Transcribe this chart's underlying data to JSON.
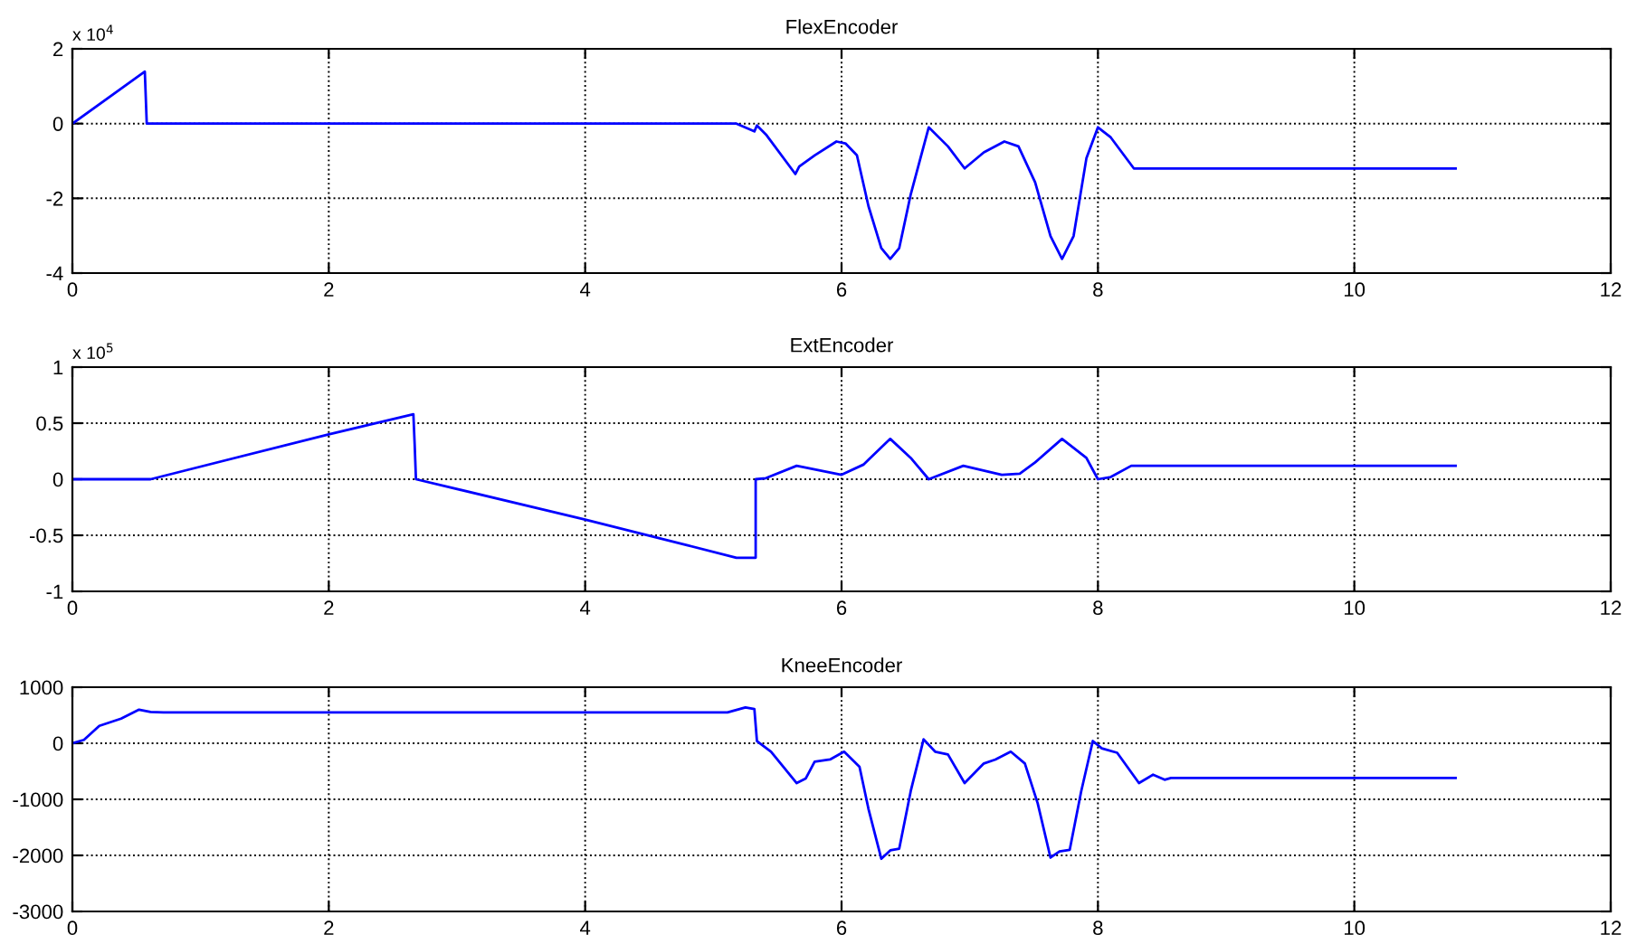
{
  "chart_data": [
    {
      "type": "line",
      "title": "FlexEncoder",
      "annotations": [
        "x 10$^{4}$"
      ],
      "xlim": [
        0,
        12
      ],
      "xticks": [
        0,
        2,
        4,
        6,
        8,
        10,
        12
      ],
      "ylim": [
        -4,
        2
      ],
      "yticks": [
        -4,
        -2,
        0,
        2
      ],
      "grid": true,
      "legend": false,
      "series": [
        {
          "color": "#0000ff",
          "x": [
            0,
            0.565,
            0.58,
            4.8,
            5.18,
            5.32,
            5.34,
            5.41,
            5.64,
            5.67,
            5.79,
            5.96,
            6.03,
            6.12,
            6.21,
            6.31,
            6.38,
            6.45,
            6.54,
            6.68,
            6.83,
            6.96,
            7.11,
            7.27,
            7.38,
            7.51,
            7.63,
            7.72,
            7.81,
            7.91,
            8.0,
            8.1,
            8.28,
            10.79
          ],
          "values": [
            0,
            1.39,
            0,
            0,
            0,
            -0.21,
            -0.05,
            -0.29,
            -1.35,
            -1.15,
            -0.85,
            -0.48,
            -0.53,
            -0.85,
            -2.21,
            -3.33,
            -3.62,
            -3.33,
            -1.89,
            -0.1,
            -0.61,
            -1.2,
            -0.77,
            -0.48,
            -0.61,
            -1.57,
            -3.01,
            -3.62,
            -3.01,
            -0.93,
            -0.1,
            -0.37,
            -1.2,
            -1.2
          ]
        }
      ]
    },
    {
      "type": "line",
      "title": "ExtEncoder",
      "annotations": [
        "x 10$^{5}$"
      ],
      "xlim": [
        0,
        12
      ],
      "xticks": [
        0,
        2,
        4,
        6,
        8,
        10,
        12
      ],
      "ylim": [
        -1,
        1
      ],
      "yticks": [
        -1,
        -0.5,
        0,
        0.5,
        1
      ],
      "grid": true,
      "legend": false,
      "series": [
        {
          "color": "#0000ff",
          "x": [
            0,
            0.61,
            2.0,
            2.66,
            2.67,
            2.68,
            4.0,
            4.8,
            5.18,
            5.33,
            5.33,
            5.41,
            5.65,
            6.0,
            6.17,
            6.38,
            6.54,
            6.68,
            6.95,
            7.25,
            7.39,
            7.51,
            7.72,
            7.91,
            8.0,
            8.1,
            8.26,
            10.79
          ],
          "values": [
            0,
            0,
            0.4,
            0.58,
            0.31,
            0,
            -0.36,
            -0.59,
            -0.7,
            -0.7,
            0,
            0.01,
            0.12,
            0.04,
            0.13,
            0.36,
            0.19,
            0,
            0.12,
            0.04,
            0.05,
            0.15,
            0.36,
            0.19,
            0,
            0.02,
            0.12,
            0.12
          ]
        }
      ]
    },
    {
      "type": "line",
      "title": "KneeEncoder",
      "xlim": [
        0,
        12
      ],
      "xticks": [
        0,
        2,
        4,
        6,
        8,
        10,
        12
      ],
      "ylim": [
        -3000,
        1000
      ],
      "yticks": [
        -3000,
        -2000,
        -1000,
        0,
        1000
      ],
      "grid": true,
      "legend": false,
      "series": [
        {
          "color": "#0000ff",
          "x": [
            0,
            0.09,
            0.21,
            0.38,
            0.52,
            0.61,
            0.71,
            5.11,
            5.25,
            5.32,
            5.34,
            5.45,
            5.65,
            5.72,
            5.79,
            5.91,
            6.02,
            6.14,
            6.21,
            6.31,
            6.38,
            6.45,
            6.54,
            6.64,
            6.73,
            6.83,
            6.96,
            7.11,
            7.2,
            7.32,
            7.43,
            7.53,
            7.63,
            7.7,
            7.78,
            7.87,
            7.96,
            8.03,
            8.15,
            8.32,
            8.43,
            8.52,
            8.57,
            10.79
          ],
          "values": [
            0,
            60,
            310,
            440,
            600,
            560,
            550,
            550,
            640,
            610,
            40,
            -150,
            -710,
            -630,
            -330,
            -290,
            -150,
            -420,
            -1170,
            -2060,
            -1910,
            -1880,
            -850,
            70,
            -150,
            -200,
            -710,
            -360,
            -290,
            -150,
            -360,
            -1070,
            -2040,
            -1930,
            -1900,
            -850,
            40,
            -90,
            -170,
            -710,
            -560,
            -650,
            -620,
            -620
          ]
        }
      ]
    }
  ]
}
